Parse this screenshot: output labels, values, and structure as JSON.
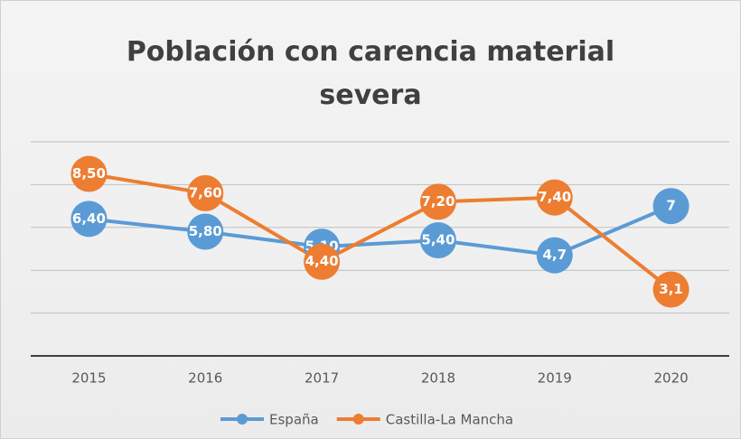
{
  "chart_data": {
    "type": "line",
    "title": "Población con carencia material severa",
    "categories": [
      "2015",
      "2016",
      "2017",
      "2018",
      "2019",
      "2020"
    ],
    "series": [
      {
        "name": "España",
        "color": "#5b9bd5",
        "values": [
          6.4,
          5.8,
          5.1,
          5.4,
          4.7,
          7
        ],
        "value_labels": [
          "6,40",
          "5,80",
          "5,10",
          "5,40",
          "4,7",
          "7"
        ]
      },
      {
        "name": "Castilla-La Mancha",
        "color": "#ed7d31",
        "values": [
          8.5,
          7.6,
          4.4,
          7.2,
          7.4,
          3.1
        ],
        "value_labels": [
          "8,50",
          "7,60",
          "4,40",
          "7,20",
          "7,40",
          "3,1"
        ]
      }
    ],
    "ylim": [
      0,
      10
    ],
    "yticks": [
      0,
      2,
      4,
      6,
      8,
      10
    ],
    "grid": true,
    "legend": "bottom"
  }
}
